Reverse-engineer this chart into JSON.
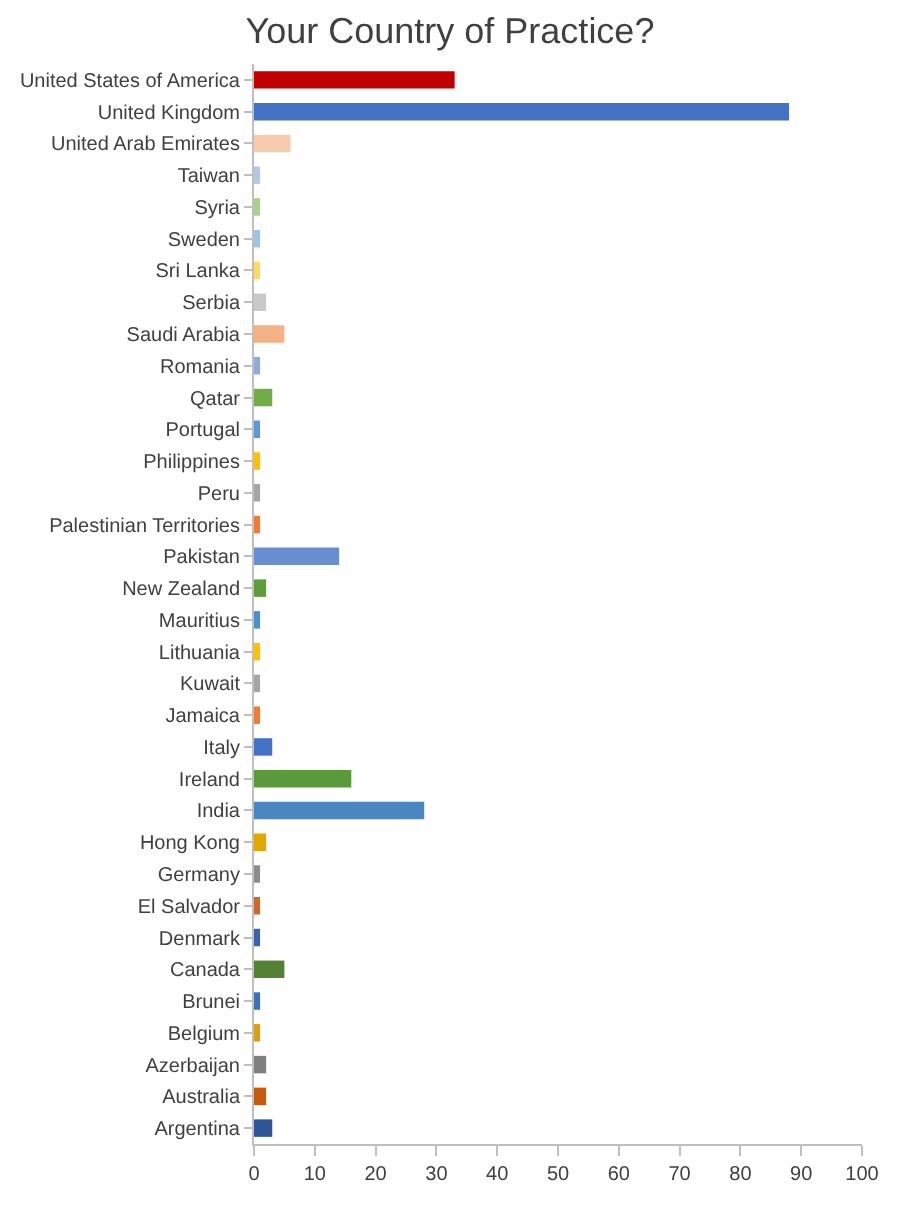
{
  "chart_data": {
    "type": "bar",
    "orientation": "horizontal",
    "title": "Your Country of Practice?",
    "categories": [
      "United States of America",
      "United Kingdom",
      "United Arab Emirates",
      "Taiwan",
      "Syria",
      "Sweden",
      "Sri Lanka",
      "Serbia",
      "Saudi Arabia",
      "Romania",
      "Qatar",
      "Portugal",
      "Philippines",
      "Peru",
      "Palestinian Territories",
      "Pakistan",
      "New Zealand",
      "Mauritius",
      "Lithuania",
      "Kuwait",
      "Jamaica",
      "Italy",
      "Ireland",
      "India",
      "Hong Kong",
      "Germany",
      "El Salvador",
      "Denmark",
      "Canada",
      "Brunei",
      "Belgium",
      "Azerbaijan",
      "Australia",
      "Argentina"
    ],
    "values": [
      33,
      88,
      6,
      1,
      1,
      1,
      1,
      2,
      5,
      1,
      3,
      1,
      1,
      1,
      1,
      14,
      2,
      1,
      1,
      1,
      1,
      3,
      16,
      28,
      2,
      1,
      1,
      1,
      5,
      1,
      1,
      2,
      2,
      3
    ],
    "colors": [
      "#c00000",
      "#4472c4",
      "#f8cbad",
      "#b4c7e7",
      "#a9d18e",
      "#9dc3e6",
      "#ffd966",
      "#c9c9c9",
      "#f4b183",
      "#8faadc",
      "#70ad47",
      "#5b9bd5",
      "#ffc000",
      "#a5a5a5",
      "#ed7d31",
      "#698ed0",
      "#5e9e3a",
      "#4a8fd0",
      "#ffc000",
      "#a5a5a5",
      "#ed7d31",
      "#4472c4",
      "#5b9a3a",
      "#4a86c0",
      "#e0a800",
      "#8c8c8c",
      "#d0682a",
      "#3a62b0",
      "#548235",
      "#3a74b8",
      "#d8a010",
      "#7f7f7f",
      "#c55a11",
      "#2f5597"
    ],
    "xlim": [
      0,
      100
    ],
    "xticks": [
      0,
      10,
      20,
      30,
      40,
      50,
      60,
      70,
      80,
      90,
      100
    ],
    "grid": false
  }
}
